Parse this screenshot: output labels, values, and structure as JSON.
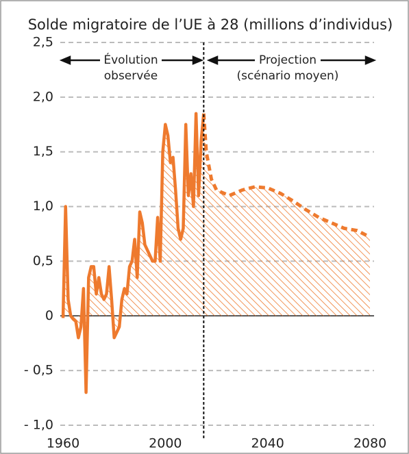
{
  "chart_data": {
    "type": "line",
    "title": "Solde migratoire de l’UE à 28 (millions d’individus)",
    "xlim": [
      1960,
      2080
    ],
    "xticks": [
      1960,
      2000,
      2040,
      2080
    ],
    "ylim": [
      -1.0,
      2.5
    ],
    "yticks": [
      {
        "value": -1.0,
        "label": "- 1,0"
      },
      {
        "value": -0.5,
        "label": "- 0,5"
      },
      0,
      {
        "value": 0.5,
        "label": "0,5"
      },
      {
        "value": 1.0,
        "label": "1,0"
      },
      {
        "value": 1.5,
        "label": "1,5"
      },
      {
        "value": 2.0,
        "label": "2,0"
      },
      {
        "value": 2.5,
        "label": "2,5"
      }
    ],
    "grid": true,
    "vline": 2015,
    "annotations": [
      {
        "lines": [
          "Évolution",
          "observée"
        ]
      },
      {
        "lines": [
          "Projection",
          "(scénario moyen)"
        ]
      }
    ],
    "series": [
      {
        "color": "#ee7a2e",
        "style": "solid",
        "x": [
          1960,
          1961,
          1962,
          1963,
          1964,
          1965,
          1966,
          1967,
          1968,
          1969,
          1970,
          1971,
          1972,
          1973,
          1974,
          1975,
          1976,
          1977,
          1978,
          1979,
          1980,
          1981,
          1982,
          1983,
          1984,
          1985,
          1986,
          1987,
          1988,
          1989,
          1990,
          1991,
          1992,
          1993,
          1994,
          1995,
          1996,
          1997,
          1998,
          1999,
          2000,
          2001,
          2002,
          2003,
          2004,
          2005,
          2006,
          2007,
          2008,
          2009,
          2010,
          2011,
          2012,
          2013,
          2014,
          2015
        ],
        "values": [
          -0.02,
          1.0,
          0.15,
          0.0,
          -0.03,
          -0.05,
          -0.2,
          -0.1,
          0.25,
          -0.7,
          0.35,
          0.45,
          0.45,
          0.2,
          0.35,
          0.2,
          0.15,
          0.2,
          0.45,
          0.15,
          -0.2,
          -0.15,
          -0.1,
          0.15,
          0.25,
          0.2,
          0.45,
          0.5,
          0.7,
          0.35,
          0.95,
          0.85,
          0.65,
          0.6,
          0.55,
          0.5,
          0.5,
          0.9,
          0.5,
          1.5,
          1.75,
          1.65,
          1.4,
          1.45,
          1.15,
          0.8,
          0.7,
          0.8,
          1.75,
          1.1,
          1.3,
          1.0,
          1.85,
          1.1,
          1.6,
          1.85
        ]
      },
      {
        "color": "#ee7a2e",
        "style": "dashed",
        "x": [
          2015,
          2016,
          2018,
          2020,
          2025,
          2030,
          2035,
          2040,
          2045,
          2050,
          2055,
          2060,
          2065,
          2070,
          2075,
          2080
        ],
        "values": [
          1.85,
          1.5,
          1.25,
          1.15,
          1.1,
          1.15,
          1.18,
          1.17,
          1.12,
          1.05,
          0.97,
          0.9,
          0.85,
          0.8,
          0.78,
          0.72
        ]
      }
    ]
  }
}
